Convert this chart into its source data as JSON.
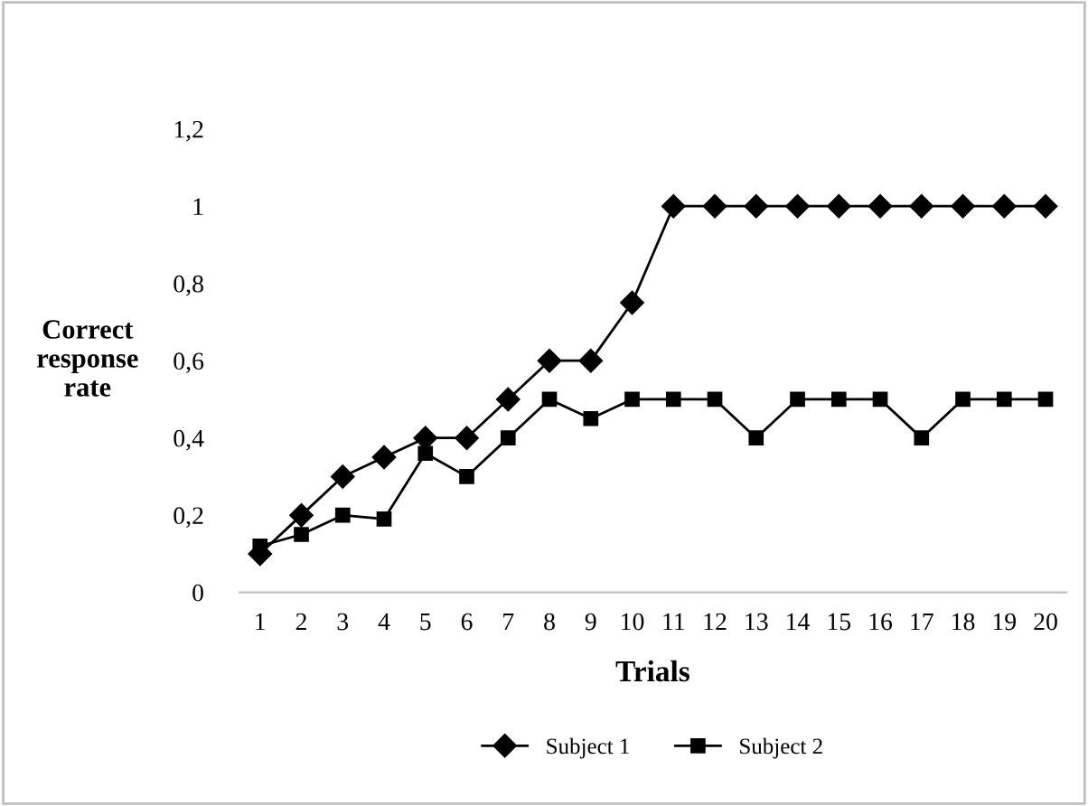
{
  "chart_data": {
    "type": "line",
    "xlabel": "Trials",
    "ylabel": "Correct\nresponse\nrate",
    "categories": [
      "1",
      "2",
      "3",
      "4",
      "5",
      "6",
      "7",
      "8",
      "9",
      "10",
      "11",
      "12",
      "13",
      "14",
      "15",
      "16",
      "17",
      "18",
      "19",
      "20"
    ],
    "series": [
      {
        "name": "Subject 1",
        "color": "#000000",
        "marker": "diamond",
        "values": [
          0.1,
          0.2,
          0.3,
          0.35,
          0.4,
          0.4,
          0.5,
          0.6,
          0.6,
          0.75,
          1,
          1,
          1,
          1,
          1,
          1,
          1,
          1,
          1,
          1
        ]
      },
      {
        "name": "Subject 2",
        "color": "#000000",
        "marker": "square",
        "values": [
          0.12,
          0.15,
          0.2,
          0.19,
          0.36,
          0.3,
          0.4,
          0.5,
          0.45,
          0.5,
          0.5,
          0.5,
          0.4,
          0.5,
          0.5,
          0.5,
          0.4,
          0.5,
          0.5,
          0.5
        ]
      }
    ],
    "ylim": [
      0,
      1.2
    ],
    "yticks": [
      0,
      {
        "value": 0.2,
        "label": "0,2"
      },
      {
        "value": 0.4,
        "label": "0,4"
      },
      {
        "value": 0.6,
        "label": "0,6"
      },
      {
        "value": 0.8,
        "label": "0,8"
      },
      1,
      {
        "value": 1.2,
        "label": "1,2"
      }
    ],
    "grid": false,
    "legend": "bottom",
    "line_style": "solid"
  }
}
